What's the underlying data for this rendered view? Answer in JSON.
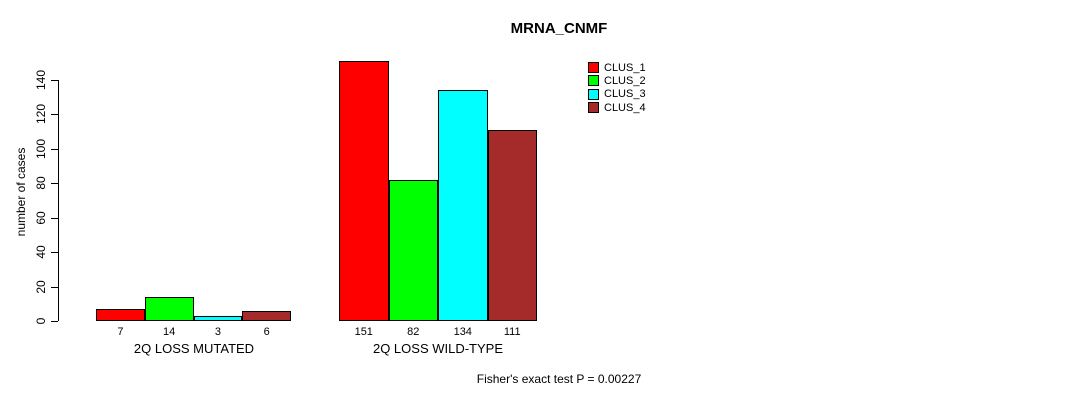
{
  "chart_data": {
    "type": "bar",
    "title": "MRNA_CNMF",
    "ylabel": "number of cases",
    "xlabel": "",
    "ylim": [
      0,
      140
    ],
    "yticks": [
      0,
      20,
      40,
      60,
      80,
      100,
      120,
      140
    ],
    "grid": false,
    "legend_position": "right",
    "categories": [
      "2Q LOSS MUTATED",
      "2Q LOSS WILD-TYPE"
    ],
    "series": [
      {
        "name": "CLUS_1",
        "color": "#ff0000",
        "values": [
          7,
          151
        ]
      },
      {
        "name": "CLUS_2",
        "color": "#00ff00",
        "values": [
          14,
          82
        ]
      },
      {
        "name": "CLUS_3",
        "color": "#00ffff",
        "values": [
          3,
          134
        ]
      },
      {
        "name": "CLUS_4",
        "color": "#a52a2a",
        "values": [
          6,
          111
        ]
      }
    ],
    "groups": [
      {
        "label": "2Q LOSS MUTATED",
        "values": [
          7,
          14,
          3,
          6
        ]
      },
      {
        "label": "2Q LOSS WILD-TYPE",
        "values": [
          151,
          82,
          134,
          111
        ]
      }
    ],
    "bar_value_labels": [
      [
        "7",
        "14",
        "3",
        "6"
      ],
      [
        "151",
        "82",
        "134",
        "111"
      ]
    ],
    "footnote": "Fisher's exact test P = 0.00227",
    "colors": {
      "axis": "#000000",
      "bar_border": "#000000",
      "background": "#ffffff"
    }
  }
}
